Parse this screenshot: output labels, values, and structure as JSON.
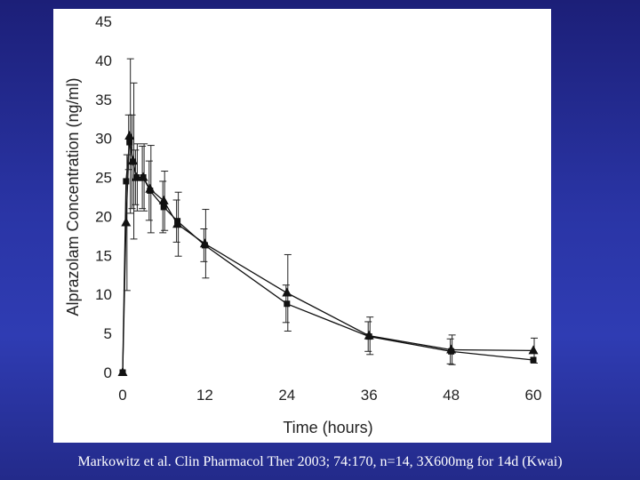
{
  "slide": {
    "caption": "Markowitz et al. Clin Pharmacol Ther 2003; 74:170, n=14, 3X600mg for 14d (Kwai)",
    "background_color": "#2a35a6"
  },
  "chart_data": {
    "type": "line",
    "title": "",
    "xlabel": "Time (hours)",
    "ylabel": "Alprazolam Concentration (ng/ml)",
    "xlim": [
      0,
      60
    ],
    "ylim": [
      0,
      45
    ],
    "xticks": [
      0,
      12,
      24,
      36,
      48,
      60
    ],
    "yticks": [
      0,
      5,
      10,
      15,
      20,
      25,
      30,
      35,
      40,
      45
    ],
    "grid": false,
    "series": [
      {
        "marker": "square",
        "x": [
          0,
          0.5,
          1,
          1.5,
          2,
          3,
          4,
          6,
          8,
          12,
          24,
          36,
          48,
          60
        ],
        "values": [
          0,
          24.5,
          29.5,
          27,
          25,
          25,
          23.3,
          21.2,
          19.4,
          16.3,
          8.8,
          4.6,
          2.7,
          1.6
        ],
        "err": [
          0,
          0,
          3.5,
          6,
          3.5,
          4,
          3.8,
          3.3,
          2.7,
          2.1,
          2.4,
          1.9,
          1.6,
          0
        ]
      },
      {
        "marker": "triangle",
        "x": [
          0,
          0.5,
          1,
          1.5,
          2,
          3,
          4,
          6,
          8,
          12,
          24,
          36,
          48,
          60
        ],
        "values": [
          0,
          19.2,
          30.3,
          27.1,
          25,
          25,
          23.5,
          22,
          19,
          16.5,
          10.2,
          4.7,
          2.9,
          2.8
        ],
        "err": [
          0,
          8.7,
          9.9,
          10,
          4.3,
          4.3,
          5.6,
          3.8,
          4.1,
          4.4,
          4.9,
          2.4,
          1.9,
          1.6
        ]
      }
    ]
  }
}
